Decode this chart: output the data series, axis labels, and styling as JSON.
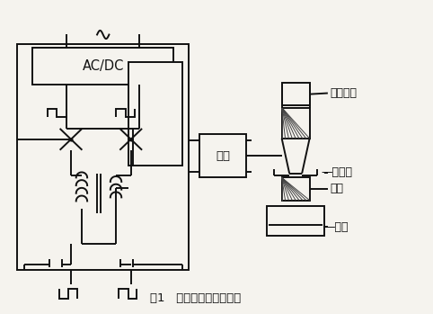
{
  "title": "图1   超声波塑料焊机结构",
  "bg_color": "#f5f3ee",
  "line_color": "#111111",
  "labels": {
    "acdc": "AC/DC",
    "peihe": "匹配",
    "shengxue": "声学系统",
    "jingya": "静压力",
    "hanjian": "焊件",
    "zuoyi": "砥座"
  },
  "figsize": [
    4.82,
    3.49
  ],
  "dpi": 100
}
